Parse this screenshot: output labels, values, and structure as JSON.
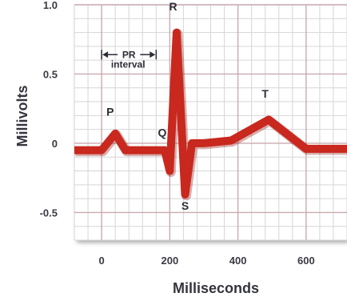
{
  "chart_data": {
    "type": "line",
    "xlabel": "Milliseconds",
    "ylabel": "Millivolts",
    "xlim": [
      -80,
      720
    ],
    "ylim": [
      -0.7,
      1.0
    ],
    "xticks": [
      "0",
      "200",
      "400",
      "600"
    ],
    "xtick_values": [
      0,
      200,
      400,
      600
    ],
    "yticks": [
      "1.0",
      "0.5",
      "0",
      "-0.5"
    ],
    "ytick_values": [
      1.0,
      0.5,
      0,
      -0.5
    ],
    "grid": true,
    "series": [
      {
        "color": "#c8281e",
        "points": [
          [
            -80,
            -0.05
          ],
          [
            0,
            -0.05
          ],
          [
            40,
            0.07
          ],
          [
            70,
            -0.05
          ],
          [
            185,
            -0.05
          ],
          [
            200,
            -0.2
          ],
          [
            220,
            0.8
          ],
          [
            245,
            -0.37
          ],
          [
            265,
            0.0
          ],
          [
            300,
            0.0
          ],
          [
            380,
            0.02
          ],
          [
            490,
            0.17
          ],
          [
            600,
            -0.04
          ],
          [
            720,
            -0.04
          ]
        ]
      }
    ],
    "annotations": [
      {
        "text": "P",
        "x": 25,
        "y": 0.2
      },
      {
        "text": "Q",
        "x": 178,
        "y": 0.05
      },
      {
        "text": "R",
        "x": 210,
        "y": 0.96
      },
      {
        "text": "S",
        "x": 245,
        "y": -0.48
      },
      {
        "text": "T",
        "x": 480,
        "y": 0.33
      }
    ],
    "interval": {
      "label_line1": "PR",
      "label_line2": "interval",
      "x_start": 0,
      "x_end": 160,
      "y": 0.64
    }
  }
}
